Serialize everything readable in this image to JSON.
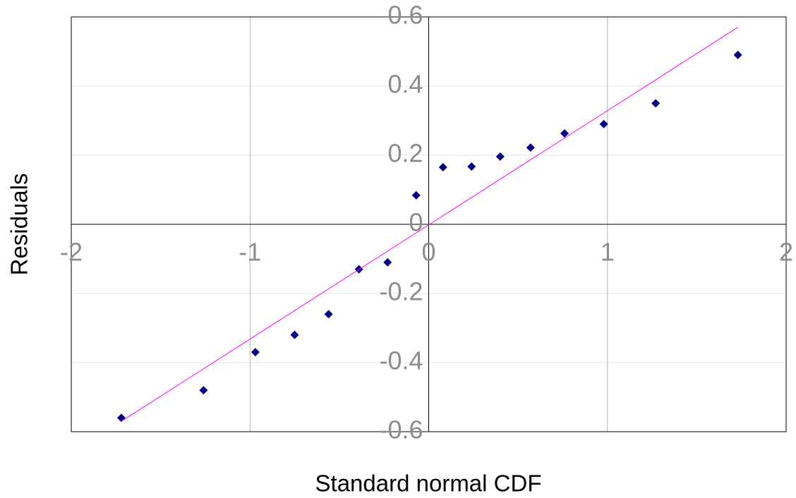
{
  "chart_data": {
    "type": "scatter",
    "x_label": "Standard normal CDF",
    "y_label": "Residuals",
    "xlim": [
      -2,
      2
    ],
    "xticks": [
      -2,
      -1,
      0,
      1,
      2
    ],
    "ylim": [
      -0.6,
      0.6
    ],
    "yticks": [
      -0.6,
      -0.4,
      -0.2,
      0,
      0.2,
      0.4,
      0.6
    ],
    "grid": true,
    "series": [
      {
        "color": "#000080",
        "marker": "diamond",
        "x": [
          -1.72,
          -1.26,
          -0.97,
          -0.75,
          -0.56,
          -0.39,
          -0.23,
          -0.07,
          0.08,
          0.24,
          0.4,
          0.57,
          0.76,
          0.98,
          1.27,
          1.73
        ],
        "values": [
          -0.56,
          -0.48,
          -0.37,
          -0.32,
          -0.26,
          -0.13,
          -0.11,
          0.084,
          0.165,
          0.167,
          0.196,
          0.222,
          0.263,
          0.29,
          0.35,
          0.49
        ]
      },
      {
        "color": "#ff00ff",
        "marker": "line",
        "x": [
          -1.72,
          1.73
        ],
        "values": [
          -0.57,
          0.57
        ]
      }
    ]
  }
}
